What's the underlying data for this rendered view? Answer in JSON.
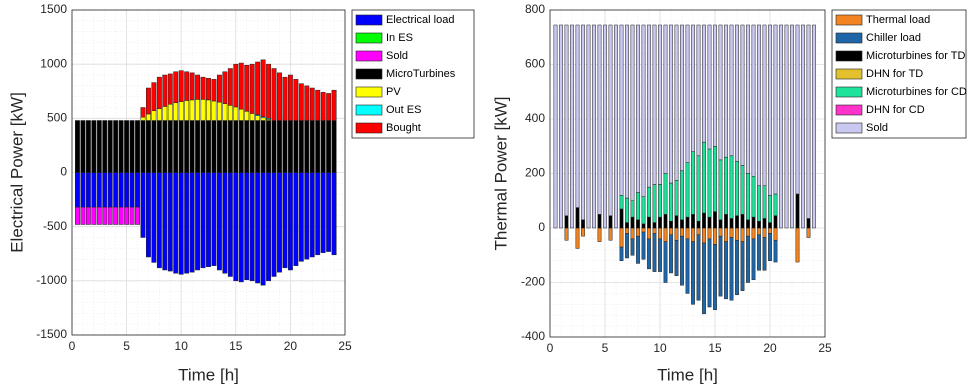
{
  "chart_data": [
    {
      "type": "bar",
      "stacked": true,
      "grid": true,
      "legend": "outside-right",
      "xlabel": "Time [h]",
      "ylabel": "Electrical Power [kW]",
      "xlim": [
        0,
        25
      ],
      "xticks": [
        0,
        5,
        10,
        15,
        20,
        25
      ],
      "ylim": [
        -1500,
        1500
      ],
      "yticks": [
        -1500,
        -1000,
        -500,
        0,
        500,
        1000,
        1500
      ],
      "x": [
        0.5,
        1,
        1.5,
        2,
        2.5,
        3,
        3.5,
        4,
        4.5,
        5,
        5.5,
        6,
        6.5,
        7,
        7.5,
        8,
        8.5,
        9,
        9.5,
        10,
        10.5,
        11,
        11.5,
        12,
        12.5,
        13,
        13.5,
        14,
        14.5,
        15,
        15.5,
        16,
        16.5,
        17,
        17.5,
        18,
        18.5,
        19,
        19.5,
        20,
        20.5,
        21,
        21.5,
        22,
        22.5,
        23,
        23.5,
        24
      ],
      "series": [
        {
          "name": "Electrical load",
          "color": "#0000ff",
          "values": [
            -320,
            -320,
            -320,
            -320,
            -320,
            -320,
            -320,
            -320,
            -320,
            -320,
            -320,
            -320,
            -600,
            -780,
            -830,
            -880,
            -900,
            -910,
            -930,
            -940,
            -930,
            -920,
            -900,
            -880,
            -870,
            -860,
            -900,
            -930,
            -960,
            -1000,
            -1010,
            -990,
            -1000,
            -1020,
            -1040,
            -1000,
            -960,
            -920,
            -880,
            -900,
            -860,
            -820,
            -800,
            -780,
            -760,
            -740,
            -730,
            -760
          ]
        },
        {
          "name": "In ES",
          "color": "#00ff00",
          "values": [
            0,
            0,
            0,
            0,
            0,
            0,
            0,
            0,
            0,
            0,
            0,
            0,
            0,
            0,
            0,
            0,
            0,
            0,
            0,
            0,
            0,
            0,
            0,
            0,
            0,
            0,
            0,
            0,
            0,
            0,
            0,
            0,
            0,
            0,
            0,
            0,
            0,
            0,
            0,
            0,
            0,
            0,
            0,
            0,
            0,
            0,
            0,
            0
          ]
        },
        {
          "name": "Sold",
          "color": "#ff00ff",
          "values": [
            -160,
            -160,
            -160,
            -160,
            -160,
            -160,
            -160,
            -160,
            -160,
            -160,
            -160,
            -160,
            0,
            0,
            0,
            0,
            0,
            0,
            0,
            0,
            0,
            0,
            0,
            0,
            0,
            0,
            0,
            0,
            0,
            0,
            0,
            0,
            0,
            0,
            0,
            0,
            0,
            0,
            0,
            0,
            0,
            0,
            0,
            0,
            0,
            0,
            0,
            0
          ]
        },
        {
          "name": "MicroTurbines",
          "color": "#000000",
          "values": [
            480,
            480,
            480,
            480,
            480,
            480,
            480,
            480,
            480,
            480,
            480,
            480,
            480,
            480,
            480,
            480,
            480,
            480,
            480,
            480,
            480,
            480,
            480,
            480,
            480,
            480,
            480,
            480,
            480,
            480,
            480,
            480,
            480,
            480,
            480,
            480,
            480,
            480,
            480,
            480,
            480,
            480,
            480,
            480,
            480,
            480,
            480,
            480
          ]
        },
        {
          "name": "PV",
          "color": "#ffff00",
          "values": [
            0,
            0,
            0,
            0,
            0,
            0,
            0,
            0,
            0,
            0,
            0,
            0,
            30,
            60,
            90,
            110,
            130,
            150,
            165,
            175,
            185,
            190,
            195,
            195,
            190,
            180,
            170,
            155,
            140,
            125,
            105,
            85,
            65,
            45,
            25,
            10,
            0,
            0,
            0,
            0,
            0,
            0,
            0,
            0,
            0,
            0,
            0,
            0
          ]
        },
        {
          "name": "Out ES",
          "color": "#00ffff",
          "values": [
            0,
            0,
            0,
            0,
            0,
            0,
            0,
            0,
            0,
            0,
            0,
            0,
            0,
            0,
            0,
            0,
            0,
            0,
            0,
            0,
            0,
            0,
            0,
            0,
            0,
            0,
            0,
            0,
            0,
            0,
            0,
            0,
            0,
            10,
            10,
            10,
            0,
            0,
            0,
            0,
            0,
            0,
            0,
            0,
            0,
            0,
            0,
            0
          ]
        },
        {
          "name": "Bought",
          "color": "#ff0000",
          "values": [
            0,
            0,
            0,
            0,
            0,
            0,
            0,
            0,
            0,
            0,
            0,
            0,
            90,
            240,
            260,
            290,
            290,
            280,
            285,
            285,
            265,
            250,
            225,
            205,
            200,
            200,
            250,
            295,
            340,
            395,
            425,
            425,
            455,
            485,
            525,
            500,
            480,
            440,
            400,
            420,
            380,
            340,
            320,
            300,
            280,
            260,
            250,
            280
          ]
        }
      ]
    },
    {
      "type": "bar",
      "stacked": true,
      "grid": true,
      "legend": "outside-right",
      "xlabel": "Time [h]",
      "ylabel": "Thermal Power [kW]",
      "xlim": [
        0,
        25
      ],
      "xticks": [
        0,
        5,
        10,
        15,
        20,
        25
      ],
      "ylim": [
        -400,
        800
      ],
      "yticks": [
        -400,
        -200,
        0,
        200,
        400,
        600,
        800
      ],
      "x": [
        0.5,
        1,
        1.5,
        2,
        2.5,
        3,
        3.5,
        4,
        4.5,
        5,
        5.5,
        6,
        6.5,
        7,
        7.5,
        8,
        8.5,
        9,
        9.5,
        10,
        10.5,
        11,
        11.5,
        12,
        12.5,
        13,
        13.5,
        14,
        14.5,
        15,
        15.5,
        16,
        16.5,
        17,
        17.5,
        18,
        18.5,
        19,
        19.5,
        20,
        20.5,
        21,
        21.5,
        22,
        22.5,
        23,
        23.5,
        24
      ],
      "series": [
        {
          "name": "Thermal load",
          "color": "#f28522",
          "values": [
            0,
            0,
            -45,
            0,
            -75,
            -30,
            0,
            0,
            -50,
            0,
            -45,
            0,
            -70,
            -20,
            -40,
            -30,
            -15,
            -40,
            -20,
            -40,
            -50,
            -25,
            -45,
            -30,
            -40,
            -50,
            -25,
            -55,
            -40,
            -60,
            -30,
            -50,
            -35,
            -45,
            -50,
            -30,
            -40,
            -25,
            -35,
            -20,
            -45,
            0,
            0,
            0,
            -125,
            0,
            -35,
            0
          ]
        },
        {
          "name": "Chiller load",
          "color": "#1f66a8",
          "values": [
            0,
            0,
            0,
            0,
            0,
            0,
            0,
            0,
            0,
            0,
            0,
            0,
            -50,
            -90,
            -60,
            -100,
            -100,
            -110,
            -140,
            -120,
            -150,
            -140,
            -130,
            -180,
            -200,
            -230,
            -240,
            -260,
            -250,
            -240,
            -220,
            -210,
            -230,
            -200,
            -180,
            -170,
            -150,
            -130,
            -120,
            -100,
            -80,
            0,
            0,
            0,
            0,
            0,
            0,
            0
          ]
        },
        {
          "name": "Microturbines for TD",
          "color": "#000000",
          "values": [
            0,
            0,
            45,
            0,
            75,
            30,
            0,
            0,
            50,
            0,
            45,
            0,
            70,
            20,
            40,
            30,
            15,
            40,
            20,
            40,
            50,
            25,
            45,
            30,
            40,
            50,
            25,
            55,
            40,
            60,
            30,
            50,
            35,
            45,
            50,
            30,
            40,
            25,
            35,
            20,
            45,
            0,
            0,
            0,
            125,
            0,
            35,
            0
          ]
        },
        {
          "name": "DHN for TD",
          "color": "#e3c12e",
          "values": [
            0,
            0,
            0,
            0,
            0,
            0,
            0,
            0,
            0,
            0,
            0,
            0,
            0,
            0,
            0,
            0,
            0,
            0,
            0,
            0,
            0,
            0,
            0,
            0,
            0,
            0,
            0,
            0,
            0,
            0,
            0,
            0,
            0,
            0,
            0,
            0,
            0,
            0,
            0,
            0,
            0,
            0,
            0,
            0,
            0,
            0,
            0,
            0
          ]
        },
        {
          "name": "Microturbines for CD",
          "color": "#1ee39b",
          "values": [
            0,
            0,
            0,
            0,
            0,
            0,
            0,
            0,
            0,
            0,
            0,
            0,
            50,
            90,
            60,
            100,
            100,
            110,
            140,
            120,
            150,
            140,
            130,
            180,
            200,
            230,
            240,
            260,
            250,
            240,
            220,
            210,
            230,
            200,
            180,
            170,
            150,
            130,
            120,
            100,
            80,
            0,
            0,
            0,
            0,
            0,
            0,
            0
          ]
        },
        {
          "name": "DHN for CD",
          "color": "#ff33cc",
          "values": [
            0,
            0,
            0,
            0,
            0,
            0,
            0,
            0,
            0,
            0,
            0,
            0,
            0,
            0,
            0,
            0,
            0,
            0,
            0,
            0,
            0,
            0,
            0,
            0,
            0,
            0,
            0,
            0,
            0,
            0,
            0,
            0,
            0,
            0,
            0,
            0,
            0,
            0,
            0,
            0,
            0,
            0,
            0,
            0,
            0,
            0,
            0,
            0
          ]
        },
        {
          "name": "Sold",
          "color": "#c8c8f0",
          "values": [
            745,
            745,
            700,
            745,
            670,
            715,
            745,
            745,
            695,
            745,
            700,
            745,
            625,
            635,
            645,
            615,
            630,
            595,
            585,
            585,
            545,
            580,
            570,
            535,
            505,
            465,
            480,
            430,
            455,
            445,
            495,
            485,
            480,
            500,
            515,
            545,
            555,
            590,
            590,
            625,
            620,
            745,
            745,
            745,
            620,
            745,
            710,
            745
          ]
        }
      ]
    }
  ]
}
